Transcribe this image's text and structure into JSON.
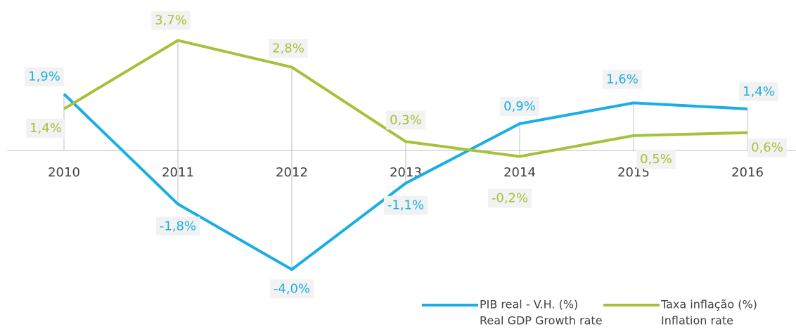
{
  "chart_data": {
    "type": "line",
    "categories": [
      "2010",
      "2011",
      "2012",
      "2013",
      "2014",
      "2015",
      "2016"
    ],
    "ylim": [
      -6,
      5
    ],
    "series": [
      {
        "name": "PIB real - V.H. (%)",
        "subname": "Real GDP Growth rate",
        "color": "#1aaee6",
        "values": [
          1.9,
          -1.8,
          -4.0,
          -1.1,
          0.9,
          1.6,
          1.4
        ],
        "value_labels": [
          "1,9%",
          "-1,8%",
          "-4,0%",
          "-1,1%",
          "0,9%",
          "1,6%",
          "1,4%"
        ]
      },
      {
        "name": "Taxa inflação (%)",
        "subname": "Inflation rate",
        "color": "#a5c23a",
        "values": [
          1.4,
          3.7,
          2.8,
          0.3,
          -0.2,
          0.5,
          0.6
        ],
        "value_labels": [
          "1,4%",
          "3,7%",
          "2,8%",
          "0,3%",
          "-0,2%",
          "0,5%",
          "0,6%"
        ]
      }
    ]
  }
}
